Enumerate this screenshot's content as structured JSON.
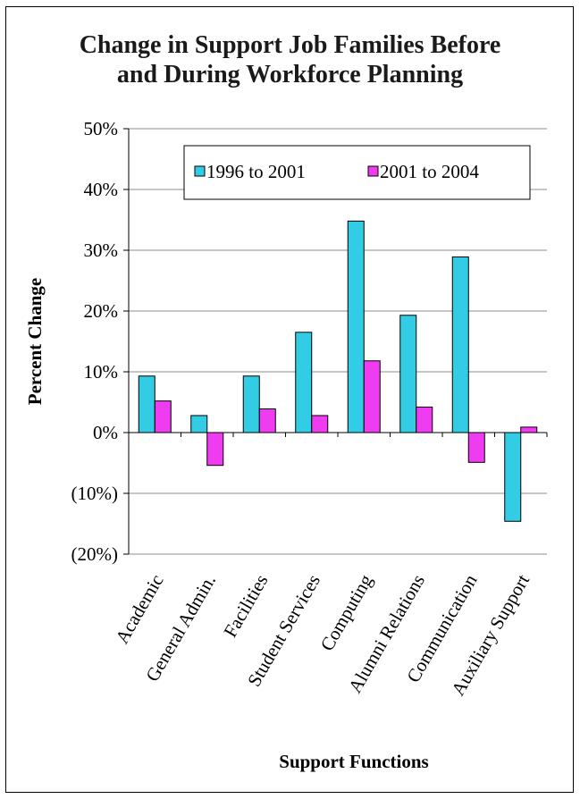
{
  "chart_data": {
    "type": "bar",
    "title_lines": [
      "Change in Support Job Families Before",
      "and During Workforce Planning"
    ],
    "xlabel": "Support Functions",
    "ylabel": "Percent Change",
    "categories": [
      "Academic",
      "General Admin.",
      "Facilities",
      "Student Services",
      "Computing",
      "Alumni Relations",
      "Communication",
      "Auxiliary Support"
    ],
    "series": [
      {
        "name": "1996 to 2001",
        "color": "#33CCE5",
        "values": [
          9.3,
          2.8,
          9.3,
          16.5,
          34.8,
          19.3,
          28.9,
          -14.6
        ]
      },
      {
        "name": "2001 to 2004",
        "color": "#F03CF0",
        "values": [
          5.2,
          -5.4,
          3.9,
          2.8,
          11.8,
          4.2,
          -4.9,
          0.9
        ]
      }
    ],
    "ylim": [
      -20,
      50
    ],
    "ytick_values": [
      50,
      40,
      30,
      20,
      10,
      0,
      -10,
      -20
    ],
    "ytick_labels": [
      "50%",
      "40%",
      "30%",
      "20%",
      "10%",
      "0%",
      "(10%)",
      "(20%)"
    ],
    "grid": true,
    "legend_position": "top"
  }
}
